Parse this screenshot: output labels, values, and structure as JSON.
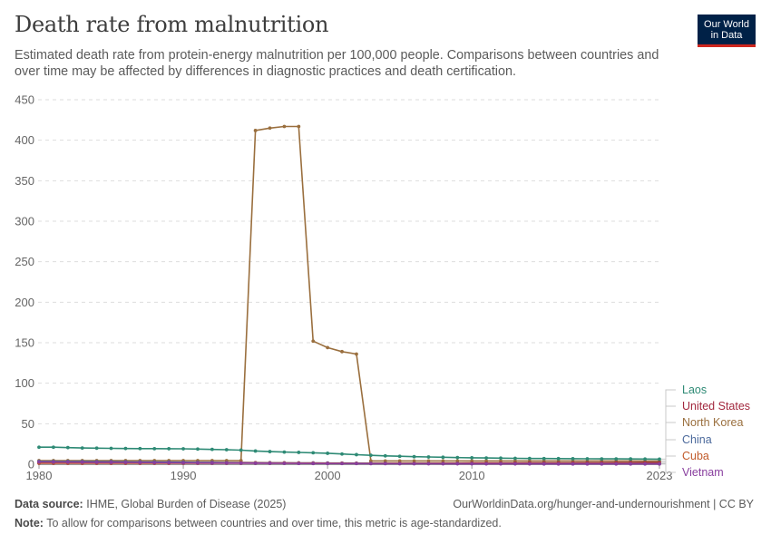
{
  "header": {
    "title": "Death rate from malnutrition",
    "subtitle": "Estimated death rate from protein-energy malnutrition per 100,000 people. Comparisons between countries and over time may be affected by differences in diagnostic practices and death certification.",
    "logo_line1": "Our World",
    "logo_line2": "in Data"
  },
  "footer": {
    "source_label": "Data source:",
    "source_text": "IHME, Global Burden of Disease (2025)",
    "note_label": "Note:",
    "note_text": "To allow for comparisons between countries and over time, this metric is age-standardized.",
    "url": "OurWorldinData.org/hunger-and-undernourishment | CC BY"
  },
  "chart_data": {
    "type": "line",
    "title": "Death rate from malnutrition",
    "xlabel": "",
    "ylabel": "",
    "xlim": [
      1980,
      2023
    ],
    "ylim": [
      0,
      450
    ],
    "yticks": [
      0,
      50,
      100,
      150,
      200,
      250,
      300,
      350,
      400,
      450
    ],
    "xticks": [
      1980,
      1990,
      2000,
      2010,
      2023
    ],
    "grid": "horizontal-dashed",
    "legend": "right-end-labels",
    "x": [
      1980,
      1981,
      1982,
      1983,
      1984,
      1985,
      1986,
      1987,
      1988,
      1989,
      1990,
      1991,
      1992,
      1993,
      1994,
      1995,
      1996,
      1997,
      1998,
      1999,
      2000,
      2001,
      2002,
      2003,
      2004,
      2005,
      2006,
      2007,
      2008,
      2009,
      2010,
      2011,
      2012,
      2013,
      2014,
      2015,
      2016,
      2017,
      2018,
      2019,
      2020,
      2021,
      2022,
      2023
    ],
    "series": [
      {
        "name": "North Korea",
        "color": "#9a6f3e",
        "values": [
          4.5,
          4.5,
          4.5,
          4.5,
          4.5,
          4.5,
          4.5,
          4.5,
          4.5,
          4.5,
          4.5,
          4.5,
          4.5,
          4.5,
          4.5,
          412,
          415,
          417,
          417,
          152,
          144,
          139,
          136,
          4,
          4,
          4,
          4,
          4,
          4,
          4,
          4,
          4,
          4,
          4,
          4,
          4,
          4,
          4,
          4,
          4,
          4,
          4,
          3.8,
          3.8
        ]
      },
      {
        "name": "Laos",
        "color": "#2e8a75",
        "values": [
          21,
          21,
          20.5,
          20,
          19.8,
          19.6,
          19.4,
          19.3,
          19.2,
          19.1,
          19,
          18.7,
          18.3,
          17.9,
          17.4,
          16.3,
          15.6,
          15,
          14.6,
          14.1,
          13.5,
          12.6,
          11.8,
          11,
          10.3,
          9.8,
          9.3,
          8.9,
          8.6,
          8.2,
          8,
          7.7,
          7.5,
          7.3,
          7.1,
          7,
          6.9,
          6.8,
          6.7,
          6.6,
          6.6,
          6.5,
          6.4,
          6.3
        ]
      },
      {
        "name": "United States",
        "color": "#a2283e",
        "values": [
          1.2,
          1.2,
          1.2,
          1.2,
          1.2,
          1.2,
          1.2,
          1.2,
          1.2,
          1.2,
          1.2,
          1.2,
          1.2,
          1.2,
          1.2,
          1.2,
          1.2,
          1.2,
          1.2,
          1.2,
          1.2,
          1.2,
          1.2,
          1.2,
          1.2,
          1.2,
          1.3,
          1.3,
          1.3,
          1.3,
          1.4,
          1.4,
          1.5,
          1.5,
          1.6,
          1.6,
          1.7,
          1.7,
          1.8,
          1.8,
          1.9,
          1.9,
          2,
          2
        ]
      },
      {
        "name": "China",
        "color": "#4c6a9c",
        "values": [
          3.5,
          3.4,
          3.3,
          3.2,
          3.1,
          3,
          2.9,
          2.8,
          2.7,
          2.6,
          2.5,
          2.4,
          2.3,
          2.2,
          2.1,
          2,
          1.9,
          1.8,
          1.7,
          1.6,
          1.5,
          1.4,
          1.3,
          1.2,
          1.1,
          1.1,
          1,
          1,
          0.9,
          0.9,
          0.8,
          0.8,
          0.8,
          0.7,
          0.7,
          0.7,
          0.6,
          0.6,
          0.6,
          0.6,
          0.5,
          0.5,
          0.5,
          0.5
        ]
      },
      {
        "name": "Cuba",
        "color": "#c15b2b",
        "values": [
          1.5,
          1.5,
          1.5,
          1.5,
          1.5,
          1.5,
          1.5,
          1.5,
          1.5,
          1.5,
          1.5,
          1.6,
          1.7,
          1.8,
          1.9,
          1.8,
          1.7,
          1.6,
          1.5,
          1.4,
          1.3,
          1.2,
          1.1,
          1,
          1,
          1,
          0.9,
          0.9,
          0.9,
          0.8,
          0.8,
          0.8,
          0.7,
          0.7,
          0.7,
          0.6,
          0.6,
          0.6,
          0.6,
          0.5,
          0.5,
          0.5,
          0.5,
          0.5
        ]
      },
      {
        "name": "Vietnam",
        "color": "#883e9e",
        "values": [
          2.8,
          2.7,
          2.6,
          2.5,
          2.4,
          2.3,
          2.2,
          2.1,
          2,
          1.9,
          1.8,
          1.7,
          1.6,
          1.5,
          1.4,
          1.3,
          1.2,
          1.1,
          1,
          0.9,
          0.9,
          0.8,
          0.8,
          0.7,
          0.7,
          0.6,
          0.6,
          0.6,
          0.5,
          0.5,
          0.5,
          0.4,
          0.4,
          0.4,
          0.4,
          0.3,
          0.3,
          0.3,
          0.3,
          0.3,
          0.3,
          0.3,
          0.3,
          0.3
        ]
      }
    ],
    "label_order": [
      "Laos",
      "United States",
      "North Korea",
      "China",
      "Cuba",
      "Vietnam"
    ]
  }
}
